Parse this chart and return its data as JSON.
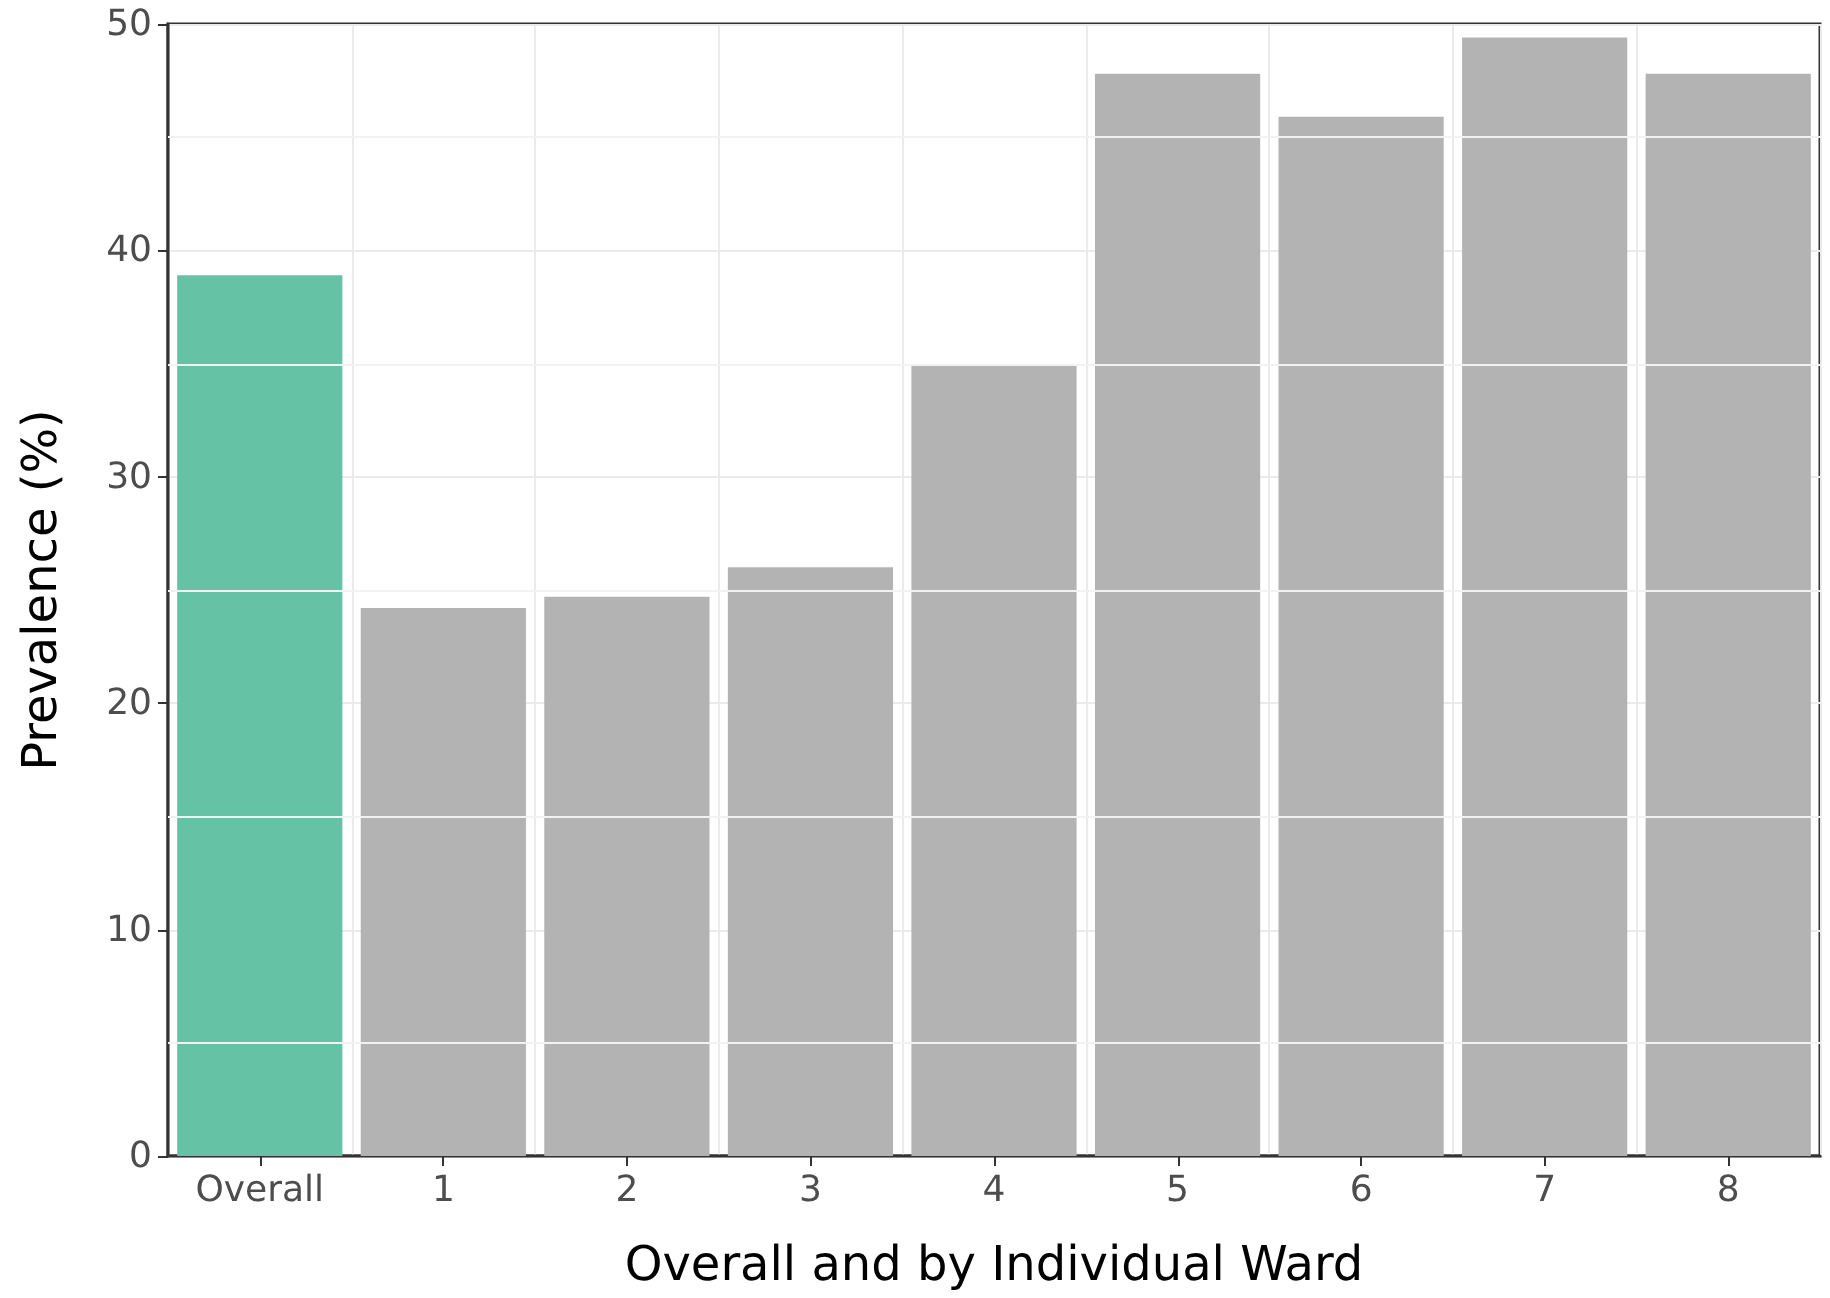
{
  "chart_data": {
    "type": "bar",
    "xlabel": "Overall and by Individual Ward",
    "ylabel": "Prevalence (%)",
    "categories": [
      "Overall",
      "1",
      "2",
      "3",
      "4",
      "5",
      "6",
      "7",
      "8"
    ],
    "values": [
      38.9,
      24.2,
      24.7,
      26.0,
      34.9,
      47.8,
      45.9,
      49.4,
      47.8
    ],
    "colors": [
      "#66c2a5",
      "#b3b3b3",
      "#b3b3b3",
      "#b3b3b3",
      "#b3b3b3",
      "#b3b3b3",
      "#b3b3b3",
      "#b3b3b3",
      "#b3b3b3"
    ],
    "ylim": [
      0,
      50
    ],
    "yticks": [
      0,
      10,
      20,
      30,
      40,
      50
    ],
    "grid": true
  }
}
